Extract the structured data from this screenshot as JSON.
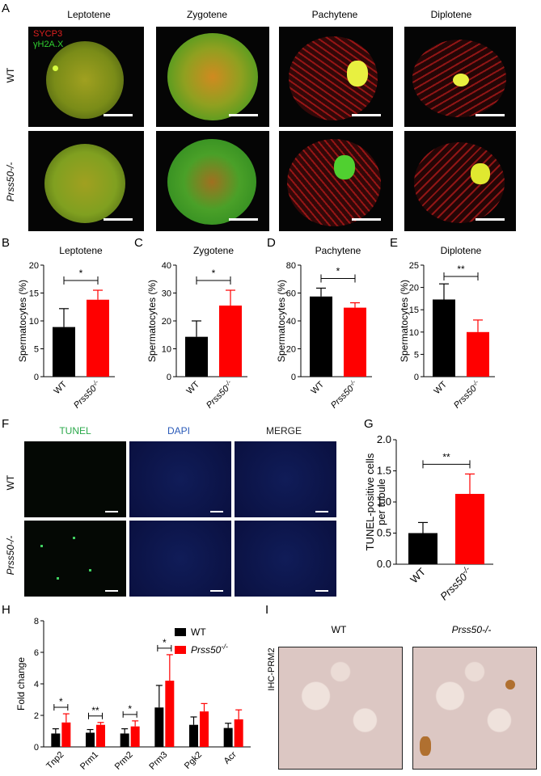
{
  "figure": {
    "panelA": {
      "letter": "A",
      "stages": [
        "Leptotene",
        "Zygotene",
        "Pachytene",
        "Diplotene"
      ],
      "rows": [
        "WT",
        "Prss50-/-"
      ],
      "stain1": "SYCP3",
      "stain2": "γH2A.X",
      "colors": {
        "sycp3": "#e02020",
        "h2ax": "#30d030"
      }
    },
    "panelF": {
      "letter": "F",
      "columns": [
        "TUNEL",
        "DAPI",
        "MERGE"
      ],
      "rows": [
        "WT",
        "Prss50-/-"
      ],
      "colors": {
        "tunel": "#2aa84a",
        "dapi": "#2a5ab8",
        "merge": "#222"
      }
    },
    "panelI": {
      "letter": "I",
      "ylabel": "IHC-PRM2",
      "columns": [
        "WT",
        "Prss50-/-"
      ]
    }
  },
  "chart_data": [
    {
      "id": "B",
      "type": "bar",
      "title": "Leptotene",
      "categories": [
        "WT",
        "Prss50-/-"
      ],
      "values": [
        8.9,
        13.8
      ],
      "errors": [
        3.3,
        1.7
      ],
      "ylabel": "Spermatocytes (%)",
      "ylim": [
        0,
        20
      ],
      "yticks": [
        0,
        5,
        10,
        15,
        20
      ],
      "significance": "*",
      "colors": [
        "#000000",
        "#ff0000"
      ]
    },
    {
      "id": "C",
      "type": "bar",
      "title": "Zygotene",
      "categories": [
        "WT",
        "Prss50-/-"
      ],
      "values": [
        14.3,
        25.5
      ],
      "errors": [
        5.7,
        5.5
      ],
      "ylabel": "Spermatocytes (%)",
      "ylim": [
        0,
        40
      ],
      "yticks": [
        0,
        10,
        20,
        30,
        40
      ],
      "significance": "*",
      "colors": [
        "#000000",
        "#ff0000"
      ]
    },
    {
      "id": "D",
      "type": "bar",
      "title": "Pachytene",
      "categories": [
        "WT",
        "Prss50-/-"
      ],
      "values": [
        57.5,
        49.5
      ],
      "errors": [
        6.0,
        3.5
      ],
      "ylabel": "Spermatocytes (%)",
      "ylim": [
        0,
        80
      ],
      "yticks": [
        0,
        20,
        40,
        60,
        80
      ],
      "significance": "*",
      "colors": [
        "#000000",
        "#ff0000"
      ]
    },
    {
      "id": "E",
      "type": "bar",
      "title": "Diplotene",
      "categories": [
        "WT",
        "Prss50-/-"
      ],
      "values": [
        17.3,
        10.0
      ],
      "errors": [
        3.5,
        2.7
      ],
      "ylabel": "Spermatocytes (%)",
      "ylim": [
        0,
        25
      ],
      "yticks": [
        0,
        5,
        10,
        15,
        20,
        25
      ],
      "significance": "**",
      "colors": [
        "#000000",
        "#ff0000"
      ]
    },
    {
      "id": "G",
      "type": "bar",
      "title": "",
      "categories": [
        "WT",
        "Prss50-/-"
      ],
      "values": [
        0.5,
        1.13
      ],
      "errors": [
        0.17,
        0.32
      ],
      "ylabel": "TUNEL-positive cells per tubule",
      "ylim": [
        0,
        2.0
      ],
      "yticks": [
        "0.0",
        "0.5",
        "1.0",
        "1.5",
        "2.0"
      ],
      "significance": "**",
      "colors": [
        "#000000",
        "#ff0000"
      ]
    },
    {
      "id": "H",
      "type": "bar",
      "title": "",
      "categories": [
        "Tnp2",
        "Prm1",
        "Prm2",
        "Prm3",
        "Pgk2",
        "Acr"
      ],
      "series": [
        {
          "name": "WT",
          "values": [
            0.85,
            0.9,
            0.85,
            2.5,
            1.4,
            1.2
          ],
          "errors": [
            0.3,
            0.2,
            0.3,
            1.4,
            0.5,
            0.3
          ],
          "color": "#000000"
        },
        {
          "name": "Prss50-/-",
          "values": [
            1.55,
            1.4,
            1.3,
            4.2,
            2.25,
            1.75
          ],
          "errors": [
            0.55,
            0.15,
            0.35,
            1.65,
            0.5,
            0.6
          ],
          "color": "#ff0000"
        }
      ],
      "ylabel": "Fold change",
      "ylim": [
        0,
        8
      ],
      "yticks": [
        0,
        2,
        4,
        6,
        8
      ],
      "significance": [
        "*",
        "**",
        "*",
        "*",
        "",
        ""
      ],
      "legend": "top-right"
    }
  ]
}
